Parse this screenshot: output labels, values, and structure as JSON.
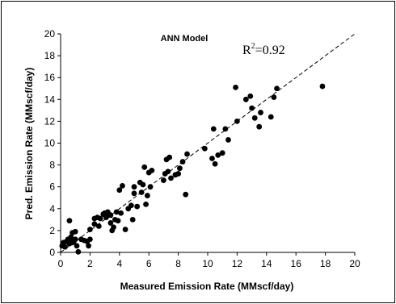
{
  "chart_data": {
    "type": "scatter",
    "title": "ANN Model",
    "annotation": {
      "base": "R",
      "sup": "2",
      "rest": "=0.92"
    },
    "xlabel": "Measured Emission Rate (MMscf/day)",
    "ylabel": "Pred. Emission Rate (MMscf/day)",
    "xlim": [
      0,
      20
    ],
    "ylim": [
      0,
      20
    ],
    "xticks": [
      "0",
      "2",
      "4",
      "6",
      "8",
      "10",
      "12",
      "14",
      "16",
      "18",
      "20"
    ],
    "yticks": [
      "0",
      "2",
      "4",
      "6",
      "8",
      "10",
      "12",
      "14",
      "16",
      "18",
      "20"
    ],
    "grid": false,
    "legend": "none",
    "reference_line": {
      "style": "dashed",
      "from": [
        0,
        0
      ],
      "to": [
        20,
        20
      ]
    },
    "marker_color": "#000000",
    "points": [
      [
        0.1,
        0.6
      ],
      [
        0.2,
        0.9
      ],
      [
        0.3,
        0.5
      ],
      [
        0.4,
        1.0
      ],
      [
        0.5,
        1.2
      ],
      [
        0.6,
        0.8
      ],
      [
        0.6,
        2.9
      ],
      [
        0.7,
        1.1
      ],
      [
        0.7,
        1.4
      ],
      [
        0.8,
        0.9
      ],
      [
        0.8,
        1.8
      ],
      [
        0.9,
        1.0
      ],
      [
        1.0,
        1.9
      ],
      [
        1.0,
        1.2
      ],
      [
        1.1,
        0.6
      ],
      [
        1.2,
        0.05
      ],
      [
        1.4,
        1.2
      ],
      [
        1.6,
        1.1
      ],
      [
        1.8,
        1.0
      ],
      [
        1.9,
        0.6
      ],
      [
        2.0,
        1.2
      ],
      [
        2.0,
        2.1
      ],
      [
        2.3,
        2.6
      ],
      [
        2.3,
        3.1
      ],
      [
        2.5,
        3.2
      ],
      [
        2.6,
        2.4
      ],
      [
        2.7,
        3.1
      ],
      [
        2.9,
        3.5
      ],
      [
        3.0,
        3.6
      ],
      [
        3.1,
        3.2
      ],
      [
        3.2,
        3.7
      ],
      [
        3.3,
        3.5
      ],
      [
        3.4,
        2.7
      ],
      [
        3.4,
        3.4
      ],
      [
        3.5,
        2.0
      ],
      [
        3.6,
        2.3
      ],
      [
        3.7,
        3.0
      ],
      [
        3.8,
        3.7
      ],
      [
        3.9,
        2.9
      ],
      [
        4.0,
        5.7
      ],
      [
        4.1,
        3.6
      ],
      [
        4.2,
        6.1
      ],
      [
        4.4,
        2.1
      ],
      [
        4.6,
        4.0
      ],
      [
        4.8,
        4.3
      ],
      [
        4.9,
        3.0
      ],
      [
        5.0,
        5.4
      ],
      [
        5.0,
        6.0
      ],
      [
        5.2,
        4.2
      ],
      [
        5.4,
        6.4
      ],
      [
        5.5,
        5.5
      ],
      [
        5.6,
        6.2
      ],
      [
        5.7,
        7.8
      ],
      [
        5.8,
        4.4
      ],
      [
        5.9,
        5.2
      ],
      [
        6.0,
        7.3
      ],
      [
        6.1,
        6.0
      ],
      [
        6.2,
        7.5
      ],
      [
        7.0,
        6.6
      ],
      [
        7.1,
        7.2
      ],
      [
        7.2,
        8.5
      ],
      [
        7.3,
        7.4
      ],
      [
        7.4,
        8.7
      ],
      [
        7.5,
        6.8
      ],
      [
        7.8,
        7.1
      ],
      [
        8.0,
        7.2
      ],
      [
        8.1,
        7.7
      ],
      [
        8.3,
        8.3
      ],
      [
        8.5,
        5.3
      ],
      [
        8.6,
        9.0
      ],
      [
        9.8,
        9.5
      ],
      [
        10.3,
        8.6
      ],
      [
        10.4,
        11.3
      ],
      [
        10.5,
        8.1
      ],
      [
        10.7,
        8.9
      ],
      [
        11.0,
        9.1
      ],
      [
        11.2,
        11.3
      ],
      [
        11.4,
        10.3
      ],
      [
        11.9,
        15.1
      ],
      [
        12.0,
        12.0
      ],
      [
        12.6,
        14.0
      ],
      [
        12.9,
        14.3
      ],
      [
        13.0,
        13.2
      ],
      [
        13.2,
        12.3
      ],
      [
        13.5,
        11.5
      ],
      [
        13.6,
        12.8
      ],
      [
        14.3,
        12.4
      ],
      [
        14.5,
        14.2
      ],
      [
        14.7,
        15.0
      ],
      [
        17.8,
        15.2
      ]
    ]
  }
}
